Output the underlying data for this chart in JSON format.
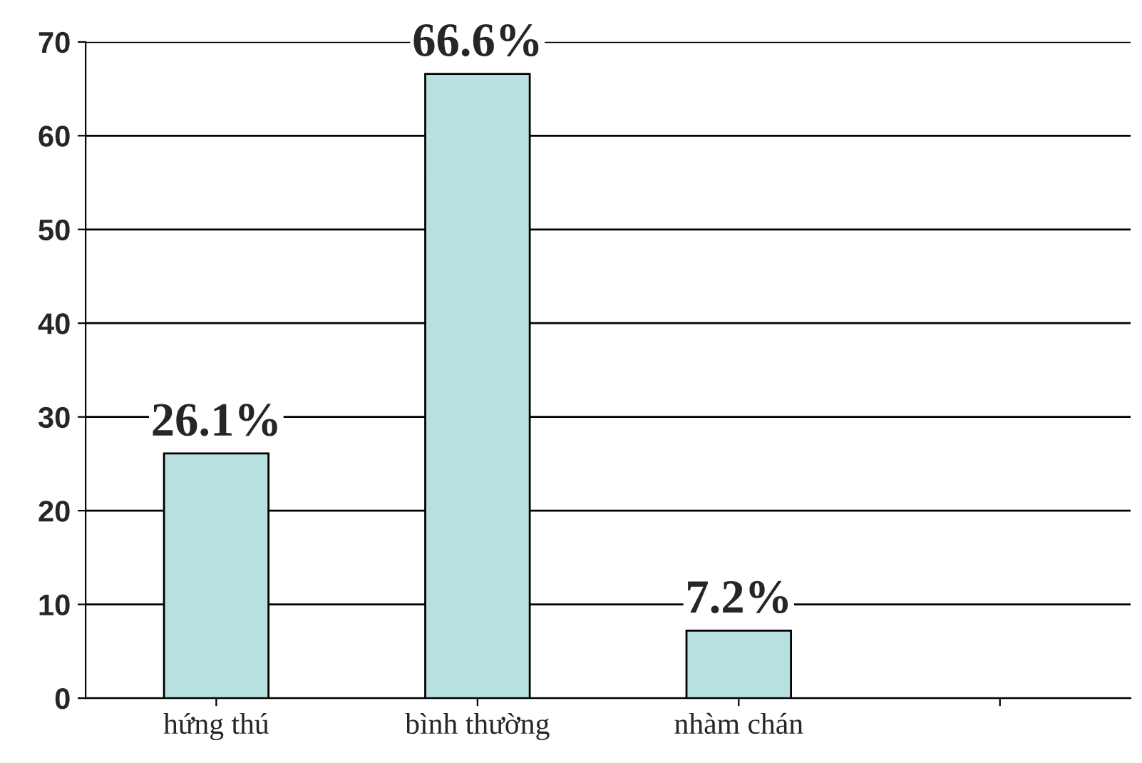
{
  "chart_data": {
    "type": "bar",
    "categories": [
      "hứng thú",
      "bình thường",
      "nhàm chán",
      null
    ],
    "values": [
      26.1,
      66.6,
      7.2,
      null
    ],
    "value_labels": [
      "26.1%",
      "66.6%",
      "7.2%",
      null
    ],
    "color": "#b8e0e0",
    "ylim": [
      0,
      70
    ],
    "yticks": [
      0,
      10,
      20,
      30,
      40,
      50,
      60,
      70
    ],
    "grid": "y",
    "legend": false
  }
}
